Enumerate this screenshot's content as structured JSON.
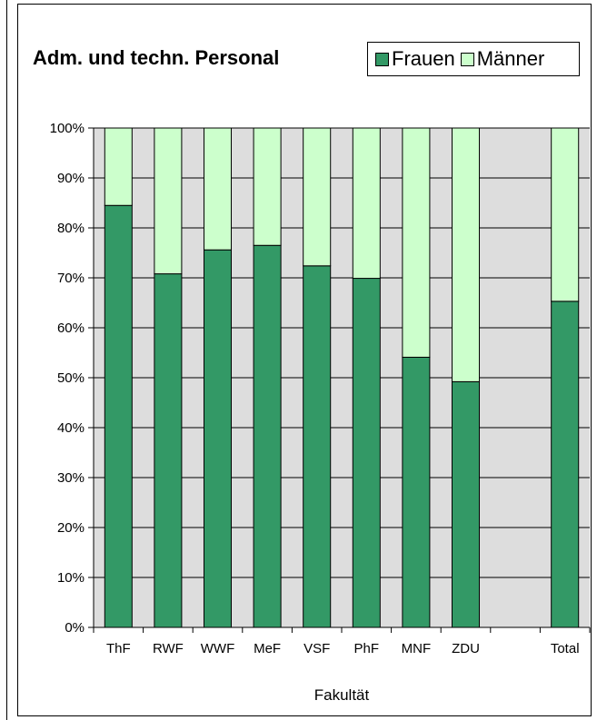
{
  "chart_data": {
    "type": "bar",
    "stacked": true,
    "title": "Adm. und techn. Personal",
    "xlabel": "Fakultät",
    "ylabel": "",
    "categories": [
      "ThF",
      "RWF",
      "WWF",
      "MeF",
      "VSF",
      "PhF",
      "MNF",
      "ZDU",
      "",
      "Total"
    ],
    "series": [
      {
        "name": "Frauen",
        "color": "#339966",
        "values": [
          84.5,
          70.8,
          75.6,
          76.5,
          72.4,
          69.9,
          54.1,
          49.2,
          0,
          65.3
        ]
      },
      {
        "name": "Männer",
        "color": "#ccffcc",
        "values": [
          15.5,
          29.2,
          24.4,
          23.5,
          27.6,
          30.1,
          45.9,
          50.8,
          0,
          34.7
        ]
      }
    ],
    "ylim": [
      0,
      100
    ],
    "yticks": [
      "0%",
      "10%",
      "20%",
      "30%",
      "40%",
      "50%",
      "60%",
      "70%",
      "80%",
      "90%",
      "100%"
    ],
    "grid": true,
    "plot_background": "#dddddd",
    "legend_position": "top-right"
  }
}
